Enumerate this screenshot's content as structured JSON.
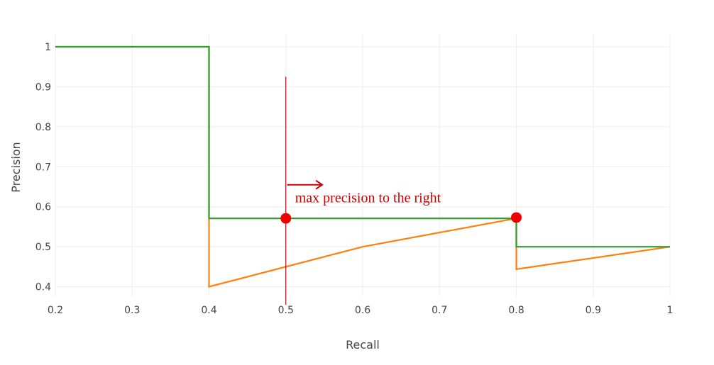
{
  "chart_data": {
    "type": "line",
    "title": "",
    "xlabel": "Recall",
    "ylabel": "Precision",
    "xlim": [
      0.2,
      1.0
    ],
    "ylim": [
      0.38,
      1.0
    ],
    "grid": true,
    "x_ticks": [
      0.2,
      0.3,
      0.4,
      0.5,
      0.6,
      0.7,
      0.8,
      0.9,
      1.0
    ],
    "x_tick_labels": [
      "0.2",
      "0.3",
      "0.4",
      "0.5",
      "0.6",
      "0.7",
      "0.8",
      "0.9",
      "1"
    ],
    "y_ticks": [
      0.4,
      0.5,
      0.6,
      0.7,
      0.8,
      0.9,
      1.0
    ],
    "y_tick_labels": [
      "0.4",
      "0.5",
      "0.6",
      "0.7",
      "0.8",
      "0.9",
      "1"
    ],
    "series": [
      {
        "color": "#ff7f0e",
        "x": [
          0.2,
          0.4,
          0.4,
          0.4,
          0.6,
          0.8,
          0.8,
          0.8,
          1.0
        ],
        "y": [
          1.0,
          1.0,
          0.571,
          0.4,
          0.5,
          0.571,
          0.571,
          0.444,
          0.5
        ]
      },
      {
        "color": "#2ca02c",
        "x": [
          0.2,
          0.4,
          0.4,
          0.8,
          0.8,
          1.0
        ],
        "y": [
          1.0,
          1.0,
          0.571,
          0.571,
          0.5,
          0.5
        ]
      }
    ],
    "annotations": {
      "vline": {
        "x": 0.5,
        "y_top": 0.925,
        "y_bottom": 0.355,
        "color": "#cc0000"
      },
      "points": [
        {
          "x": 0.5,
          "y": 0.571
        },
        {
          "x": 0.8,
          "y": 0.573
        }
      ],
      "arrow": {
        "x_start": 0.5,
        "x_end": 0.54,
        "y": 0.655
      },
      "text": "max precision to the right",
      "text_x": 0.512,
      "text_y": 0.6
    }
  }
}
